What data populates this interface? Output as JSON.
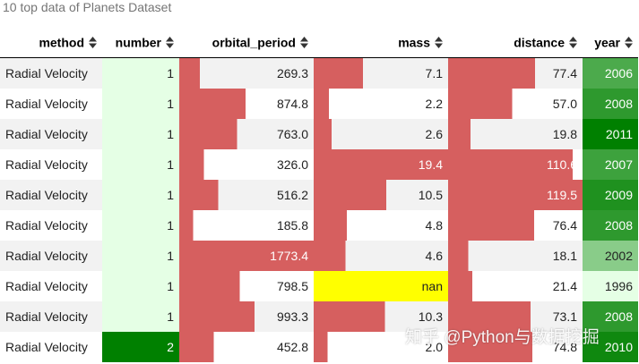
{
  "caption": "10 top data of Planets Dataset",
  "watermark": "知乎 @Python与数据挖掘",
  "columns": [
    "method",
    "number",
    "orbital_period",
    "mass",
    "distance",
    "year"
  ],
  "sort_icon": "sort-up-down-icon",
  "colors": {
    "bar": "#d65f5f",
    "highlight_null": "#ffff00",
    "green_light": "#e5ffe5",
    "green_dark": "#008000",
    "row_alt": "#f2f2f2"
  },
  "rows": [
    {
      "method": "Radial Velocity",
      "number": "1",
      "orbital_period": "269.3",
      "mass": "7.1",
      "distance": "77.4",
      "year": "2006"
    },
    {
      "method": "Radial Velocity",
      "number": "1",
      "orbital_period": "874.8",
      "mass": "2.2",
      "distance": "57.0",
      "year": "2008"
    },
    {
      "method": "Radial Velocity",
      "number": "1",
      "orbital_period": "763.0",
      "mass": "2.6",
      "distance": "19.8",
      "year": "2011"
    },
    {
      "method": "Radial Velocity",
      "number": "1",
      "orbital_period": "326.0",
      "mass": "19.4",
      "distance": "110.6",
      "year": "2007"
    },
    {
      "method": "Radial Velocity",
      "number": "1",
      "orbital_period": "516.2",
      "mass": "10.5",
      "distance": "119.5",
      "year": "2009"
    },
    {
      "method": "Radial Velocity",
      "number": "1",
      "orbital_period": "185.8",
      "mass": "4.8",
      "distance": "76.4",
      "year": "2008"
    },
    {
      "method": "Radial Velocity",
      "number": "1",
      "orbital_period": "1773.4",
      "mass": "4.6",
      "distance": "18.1",
      "year": "2002"
    },
    {
      "method": "Radial Velocity",
      "number": "1",
      "orbital_period": "798.5",
      "mass": "nan",
      "distance": "21.4",
      "year": "1996"
    },
    {
      "method": "Radial Velocity",
      "number": "1",
      "orbital_period": "993.3",
      "mass": "10.3",
      "distance": "73.1",
      "year": "2008"
    },
    {
      "method": "Radial Velocity",
      "number": "2",
      "orbital_period": "452.8",
      "mass": "2.0",
      "distance": "74.8",
      "year": "2010"
    }
  ]
}
